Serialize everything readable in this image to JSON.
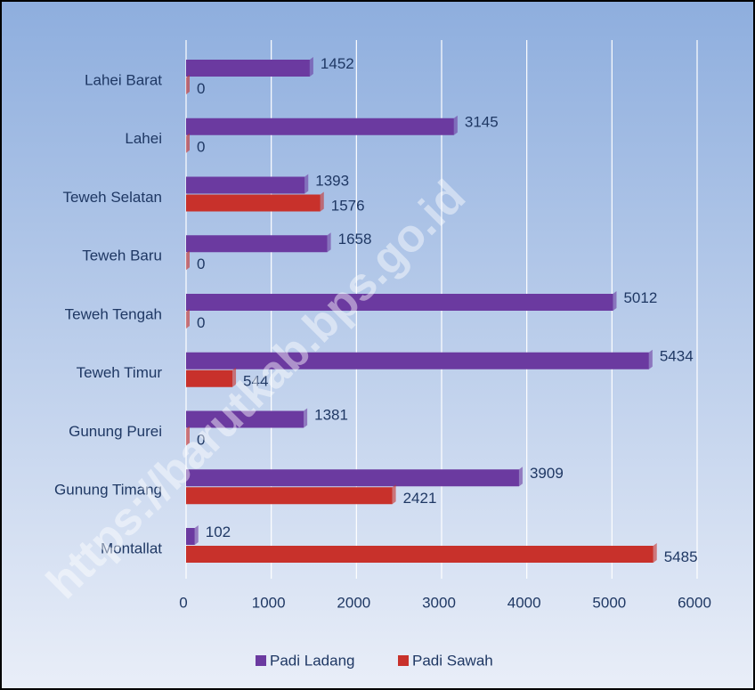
{
  "chart_data": {
    "type": "bar",
    "orientation": "horizontal",
    "categories": [
      "Lahei Barat",
      "Lahei",
      "Teweh Selatan",
      "Teweh Baru",
      "Teweh Tengah",
      "Teweh Timur",
      "Gunung Purei",
      "Gunung Timang",
      "Montallat"
    ],
    "series": [
      {
        "name": "Padi Ladang",
        "color": "#6b3aa0",
        "values": [
          1452,
          3145,
          1393,
          1658,
          5012,
          5434,
          1381,
          3909,
          102
        ]
      },
      {
        "name": "Padi Sawah",
        "color": "#c8312b",
        "values": [
          0,
          0,
          1576,
          0,
          0,
          544,
          0,
          2421,
          5485
        ]
      }
    ],
    "xlim": [
      0,
      6000
    ],
    "xticks": [
      0,
      1000,
      2000,
      3000,
      4000,
      5000,
      6000
    ],
    "grid": true,
    "legend": "bottom",
    "watermark": "https://barutkab.bps.go.id"
  }
}
